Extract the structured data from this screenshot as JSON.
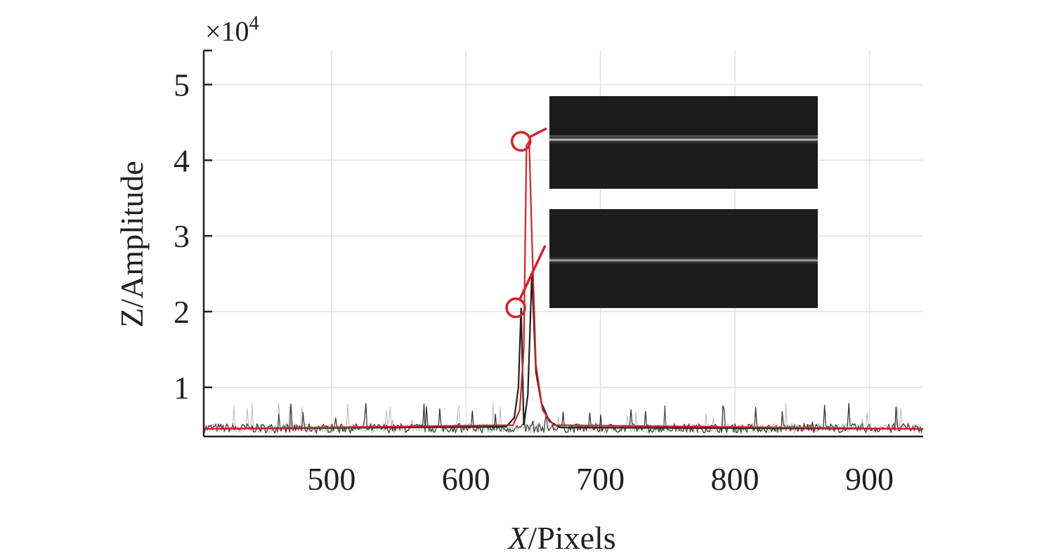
{
  "chart_data": {
    "type": "line",
    "title": "",
    "xlabel_italic": "X",
    "xlabel_rest": "/Pixels",
    "ylabel": "Z/Amplitude",
    "y_multiplier": "×10",
    "y_multiplier_exp": "4",
    "xlim": [
      405,
      940
    ],
    "ylim": [
      0.35,
      5.45
    ],
    "x_ticks": [
      500,
      600,
      700,
      800,
      900
    ],
    "y_ticks": [
      1,
      2,
      3,
      4,
      5
    ],
    "x_tick_labels": [
      "500",
      "600",
      "700",
      "800",
      "900"
    ],
    "y_tick_labels": [
      "1",
      "2",
      "3",
      "4",
      "5"
    ],
    "grid": true,
    "noise_floor": 0.45,
    "noise_peak_max": 0.8,
    "series": [
      {
        "role": "profile-a",
        "color": "#231f20",
        "points": [
          [
            405,
            0.45
          ],
          [
            630,
            0.48
          ],
          [
            636,
            0.6
          ],
          [
            639,
            1.0
          ],
          [
            641,
            2.05
          ],
          [
            643,
            0.5
          ],
          [
            646,
            0.9
          ],
          [
            649,
            2.5
          ],
          [
            652,
            1.2
          ],
          [
            656,
            0.8
          ],
          [
            662,
            0.55
          ],
          [
            670,
            0.47
          ],
          [
            940,
            0.45
          ]
        ]
      },
      {
        "role": "profile-b",
        "color": "#d2232a",
        "points": [
          [
            405,
            0.45
          ],
          [
            635,
            0.5
          ],
          [
            640,
            0.7
          ],
          [
            643,
            1.5
          ],
          [
            645,
            4.2
          ],
          [
            647,
            4.25
          ],
          [
            649,
            3.0
          ],
          [
            652,
            1.3
          ],
          [
            657,
            0.7
          ],
          [
            665,
            0.5
          ],
          [
            940,
            0.45
          ]
        ]
      }
    ],
    "annotations": [
      {
        "type": "circle-marker",
        "x": 641,
        "y": 4.25,
        "color": "#d2232a",
        "points_to": "inset-top"
      },
      {
        "type": "circle-marker",
        "x": 637,
        "y": 2.05,
        "color": "#d2232a",
        "points_to": "inset-bottom"
      }
    ],
    "insets": [
      {
        "name": "inset-top",
        "background": "#1c1c1c",
        "line_brightness": 0.9
      },
      {
        "name": "inset-bottom",
        "background": "#1c1c1c",
        "line_brightness": 0.75
      }
    ]
  }
}
